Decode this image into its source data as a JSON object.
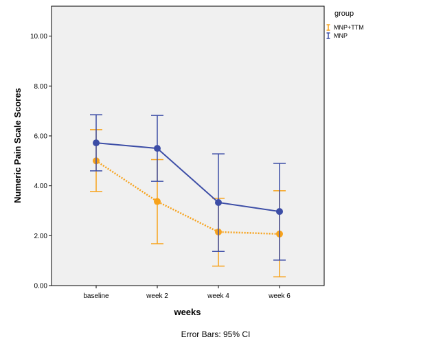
{
  "chart_data": {
    "type": "line",
    "categories": [
      "baseline",
      "week 2",
      "week 4",
      "week 6"
    ],
    "xlabel": "weeks",
    "ylabel": "Numeric Pain Scale Scores",
    "ylim": [
      0,
      11.2
    ],
    "yticks": [
      "0.00",
      "2.00",
      "4.00",
      "6.00",
      "8.00",
      "10.00"
    ],
    "ytick_values": [
      0,
      2,
      4,
      6,
      8,
      10
    ],
    "grid": false,
    "legend_title": "group",
    "legend_position": "top-right",
    "footnote": "Error Bars: 95% CI",
    "series": [
      {
        "name": "MNP+TTM",
        "color": "#F7A21B",
        "line_style": "dotted",
        "values": [
          5.0,
          3.37,
          2.15,
          2.07
        ],
        "ci_low": [
          3.77,
          1.68,
          0.78,
          0.35
        ],
        "ci_high": [
          6.25,
          5.05,
          3.5,
          3.8
        ]
      },
      {
        "name": "MNP",
        "color": "#3C4DA6",
        "line_style": "solid",
        "values": [
          5.72,
          5.5,
          3.33,
          2.97
        ],
        "ci_low": [
          4.6,
          4.18,
          1.37,
          1.02
        ],
        "ci_high": [
          6.85,
          6.82,
          5.28,
          4.9
        ]
      }
    ]
  }
}
